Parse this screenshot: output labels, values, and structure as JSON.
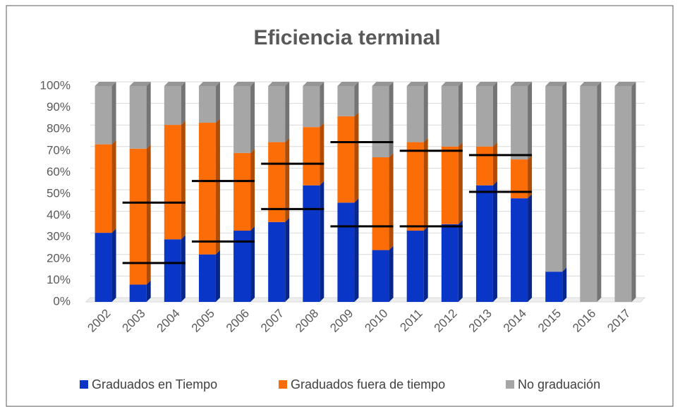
{
  "chart_data": {
    "type": "stacked_bar",
    "title": "Eficiencia terminal",
    "categories": [
      "2002",
      "2003",
      "2004",
      "2005",
      "2006",
      "2007",
      "2008",
      "2009",
      "2010",
      "2011",
      "2012",
      "2013",
      "2014",
      "2015",
      "2016",
      "2017"
    ],
    "series": [
      {
        "name": "Graduados en Tiempo",
        "color": "#0a36c8",
        "values": [
          32,
          8,
          29,
          22,
          33,
          37,
          54,
          46,
          24,
          33,
          36,
          54,
          48,
          14,
          0,
          0
        ]
      },
      {
        "name": "Graduados fuera de tiempo",
        "color": "#fd6d07",
        "values": [
          41,
          63,
          53,
          61,
          36,
          37,
          27,
          40,
          43,
          41,
          36,
          18,
          18,
          0,
          0,
          0
        ]
      },
      {
        "name": "No graduación",
        "color": "#a6a6a6",
        "values": [
          27,
          29,
          18,
          17,
          31,
          26,
          19,
          14,
          33,
          26,
          28,
          28,
          34,
          86,
          100,
          100
        ]
      }
    ],
    "markers": [
      {
        "from": "2003",
        "to": "2004",
        "values": [
          46,
          18
        ]
      },
      {
        "from": "2005",
        "to": "2006",
        "values": [
          56,
          28
        ]
      },
      {
        "from": "2007",
        "to": "2008",
        "values": [
          64,
          43
        ]
      },
      {
        "from": "2009",
        "to": "2010",
        "values": [
          74,
          35
        ]
      },
      {
        "from": "2011",
        "to": "2012",
        "values": [
          70,
          35
        ]
      },
      {
        "from": "2013",
        "to": "2014",
        "values": [
          68,
          51
        ]
      }
    ],
    "ylim": [
      0,
      100
    ],
    "yticks": [
      {
        "value": 0,
        "label": "0%"
      },
      {
        "value": 10,
        "label": "10%"
      },
      {
        "value": 20,
        "label": "20%"
      },
      {
        "value": 30,
        "label": "30%"
      },
      {
        "value": 40,
        "label": "40%"
      },
      {
        "value": 50,
        "label": "50%"
      },
      {
        "value": 60,
        "label": "60%"
      },
      {
        "value": 70,
        "label": "70%"
      },
      {
        "value": 80,
        "label": "80%"
      },
      {
        "value": 90,
        "label": "90%"
      },
      {
        "value": 100,
        "label": "100%"
      }
    ],
    "grid": true,
    "legend": "bottom"
  }
}
